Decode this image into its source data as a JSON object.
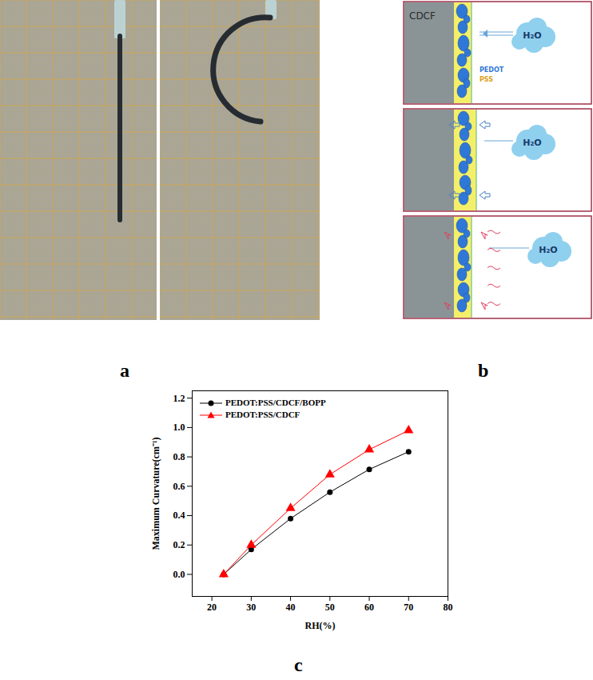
{
  "panel_labels": [
    "a",
    "b",
    "c"
  ],
  "diagram": {
    "substrate": "CDCF",
    "molecule": "H₂O",
    "particles": "PEDOT",
    "matrix": "PSS"
  },
  "chart_data": {
    "type": "line",
    "x_label": "RH(%)",
    "y_label": "Maximum Curvature(cm⁻¹)",
    "x": [
      23,
      30,
      40,
      50,
      60,
      70
    ],
    "series": [
      {
        "name": "PEDOT:PSS/CDCF/BOPP",
        "color": "#000000",
        "marker": "circle",
        "values": [
          0,
          0.17,
          0.38,
          0.56,
          0.715,
          0.835
        ]
      },
      {
        "name": "PEDOT:PSS/CDCF",
        "color": "#ff0000",
        "marker": "triangle",
        "values": [
          0,
          0.2,
          0.45,
          0.68,
          0.85,
          0.98
        ]
      }
    ],
    "xlim": [
      15,
      80
    ],
    "xticks": [
      20,
      30,
      40,
      50,
      60,
      70,
      80
    ],
    "ylim": [
      -0.15,
      1.25
    ],
    "yticks": [
      {
        "value": 0,
        "label": "0.0"
      },
      {
        "value": 0.2,
        "label": "0.2"
      },
      {
        "value": 0.4,
        "label": "0.4"
      },
      {
        "value": 0.6,
        "label": "0.6"
      },
      {
        "value": 0.8,
        "label": "0.8"
      },
      {
        "value": 1,
        "label": "1.0"
      },
      {
        "value": 1.2,
        "label": "1.2"
      }
    ],
    "legend": "top-left",
    "grid": false
  }
}
